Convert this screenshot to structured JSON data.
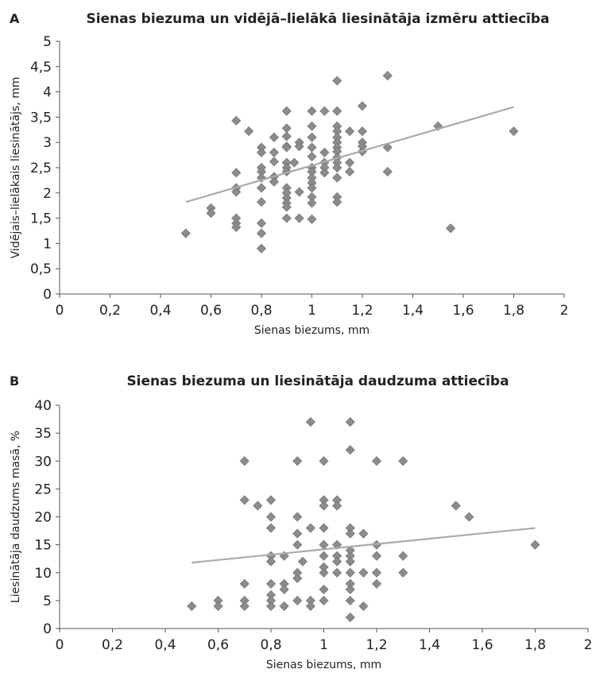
{
  "chart_data": [
    {
      "panel_letter": "A",
      "type": "scatter",
      "title": "Sienas biezuma un vidējā–lielākā liesinātāja izmēru attiecība",
      "xlabel": "Sienas biezums, mm",
      "ylabel": "Vidējais–lielākais liesinātājs, mm",
      "xlim": [
        0,
        2
      ],
      "ylim": [
        0,
        5
      ],
      "x_ticks": [
        "0",
        "0,2",
        "0,4",
        "0,6",
        "0,8",
        "1",
        "1,2",
        "1,4",
        "1,6",
        "1,8",
        "2"
      ],
      "y_ticks": [
        "0",
        "0,5",
        "1",
        "1,5",
        "2",
        "2,5",
        "3",
        "3,5",
        "4",
        "4,5",
        "5"
      ],
      "grid": false,
      "marker_color": "#8c8c8c",
      "trend_color": "#aaaaaa",
      "trendline": {
        "x": [
          0.5,
          1.8
        ],
        "y": [
          1.82,
          3.7
        ]
      },
      "points": [
        [
          0.5,
          1.2
        ],
        [
          0.6,
          1.7
        ],
        [
          0.6,
          1.6
        ],
        [
          0.7,
          3.43
        ],
        [
          0.7,
          2.4
        ],
        [
          0.7,
          2.1
        ],
        [
          0.7,
          2.02
        ],
        [
          0.7,
          1.5
        ],
        [
          0.7,
          1.4
        ],
        [
          0.7,
          1.32
        ],
        [
          0.75,
          3.22
        ],
        [
          0.8,
          2.9
        ],
        [
          0.8,
          2.8
        ],
        [
          0.8,
          2.5
        ],
        [
          0.8,
          2.42
        ],
        [
          0.8,
          2.3
        ],
        [
          0.8,
          2.1
        ],
        [
          0.8,
          1.82
        ],
        [
          0.8,
          1.4
        ],
        [
          0.8,
          1.2
        ],
        [
          0.8,
          0.9
        ],
        [
          0.85,
          3.1
        ],
        [
          0.85,
          2.8
        ],
        [
          0.85,
          2.62
        ],
        [
          0.85,
          2.32
        ],
        [
          0.85,
          2.22
        ],
        [
          0.9,
          3.62
        ],
        [
          0.9,
          3.28
        ],
        [
          0.9,
          3.12
        ],
        [
          0.9,
          2.92
        ],
        [
          0.9,
          2.9
        ],
        [
          0.9,
          2.6
        ],
        [
          0.9,
          2.5
        ],
        [
          0.9,
          2.42
        ],
        [
          0.9,
          2.1
        ],
        [
          0.9,
          2.0
        ],
        [
          0.9,
          1.9
        ],
        [
          0.9,
          1.8
        ],
        [
          0.9,
          1.72
        ],
        [
          0.9,
          1.5
        ],
        [
          0.93,
          2.6
        ],
        [
          0.95,
          3.0
        ],
        [
          0.95,
          2.92
        ],
        [
          0.95,
          2.02
        ],
        [
          0.95,
          1.5
        ],
        [
          1.0,
          3.62
        ],
        [
          1.0,
          3.32
        ],
        [
          1.0,
          3.1
        ],
        [
          1.0,
          2.9
        ],
        [
          1.0,
          2.72
        ],
        [
          1.0,
          2.5
        ],
        [
          1.0,
          2.42
        ],
        [
          1.0,
          2.3
        ],
        [
          1.0,
          2.2
        ],
        [
          1.0,
          2.1
        ],
        [
          1.0,
          1.92
        ],
        [
          1.0,
          1.8
        ],
        [
          1.0,
          1.48
        ],
        [
          1.05,
          3.62
        ],
        [
          1.05,
          2.8
        ],
        [
          1.05,
          2.6
        ],
        [
          1.05,
          2.5
        ],
        [
          1.05,
          2.4
        ],
        [
          1.1,
          4.22
        ],
        [
          1.1,
          3.62
        ],
        [
          1.1,
          3.32
        ],
        [
          1.1,
          3.22
        ],
        [
          1.1,
          3.1
        ],
        [
          1.1,
          3.0
        ],
        [
          1.1,
          2.9
        ],
        [
          1.1,
          2.82
        ],
        [
          1.1,
          2.7
        ],
        [
          1.1,
          2.6
        ],
        [
          1.1,
          2.5
        ],
        [
          1.1,
          2.3
        ],
        [
          1.1,
          1.92
        ],
        [
          1.1,
          1.82
        ],
        [
          1.15,
          3.22
        ],
        [
          1.15,
          2.6
        ],
        [
          1.15,
          2.42
        ],
        [
          1.2,
          3.72
        ],
        [
          1.2,
          3.22
        ],
        [
          1.2,
          3.0
        ],
        [
          1.2,
          2.92
        ],
        [
          1.2,
          2.82
        ],
        [
          1.3,
          4.32
        ],
        [
          1.3,
          2.9
        ],
        [
          1.3,
          2.42
        ],
        [
          1.5,
          3.32
        ],
        [
          1.55,
          1.3
        ],
        [
          1.8,
          3.22
        ]
      ]
    },
    {
      "panel_letter": "B",
      "type": "scatter",
      "title": "Sienas biezuma un liesinātāja daudzuma attiecība",
      "xlabel": "Sienas biezums, mm",
      "ylabel": "Liesinātāja daudzums masā, %",
      "xlim": [
        0,
        2
      ],
      "ylim": [
        0,
        40
      ],
      "x_ticks": [
        "0",
        "0,2",
        "0,4",
        "0,6",
        "0,8",
        "1",
        "1,2",
        "1,4",
        "1,6",
        "1,8",
        "2"
      ],
      "y_ticks": [
        "0",
        "5",
        "10",
        "15",
        "20",
        "25",
        "30",
        "35",
        "40"
      ],
      "grid": false,
      "marker_color": "#8c8c8c",
      "trend_color": "#aaaaaa",
      "trendline": {
        "x": [
          0.5,
          1.8
        ],
        "y": [
          11.8,
          18.0
        ]
      },
      "points": [
        [
          0.5,
          4
        ],
        [
          0.6,
          5
        ],
        [
          0.6,
          4
        ],
        [
          0.7,
          30
        ],
        [
          0.7,
          23
        ],
        [
          0.7,
          8
        ],
        [
          0.7,
          5
        ],
        [
          0.7,
          4
        ],
        [
          0.75,
          22
        ],
        [
          0.8,
          23
        ],
        [
          0.8,
          20
        ],
        [
          0.8,
          18
        ],
        [
          0.8,
          13
        ],
        [
          0.8,
          12
        ],
        [
          0.8,
          8
        ],
        [
          0.8,
          6
        ],
        [
          0.8,
          5
        ],
        [
          0.8,
          4
        ],
        [
          0.85,
          13
        ],
        [
          0.85,
          8
        ],
        [
          0.85,
          7
        ],
        [
          0.85,
          4
        ],
        [
          0.9,
          30
        ],
        [
          0.9,
          20
        ],
        [
          0.9,
          17
        ],
        [
          0.9,
          15
        ],
        [
          0.9,
          10
        ],
        [
          0.9,
          9
        ],
        [
          0.9,
          5
        ],
        [
          0.92,
          12
        ],
        [
          0.95,
          37
        ],
        [
          0.95,
          18
        ],
        [
          0.95,
          5
        ],
        [
          0.95,
          4
        ],
        [
          1.0,
          30
        ],
        [
          1.0,
          23
        ],
        [
          1.0,
          22
        ],
        [
          1.0,
          18
        ],
        [
          1.0,
          15
        ],
        [
          1.0,
          13
        ],
        [
          1.0,
          11
        ],
        [
          1.0,
          10
        ],
        [
          1.0,
          7
        ],
        [
          1.0,
          5
        ],
        [
          1.05,
          23
        ],
        [
          1.05,
          22
        ],
        [
          1.05,
          15
        ],
        [
          1.05,
          13
        ],
        [
          1.05,
          12
        ],
        [
          1.05,
          10
        ],
        [
          1.1,
          37
        ],
        [
          1.1,
          32
        ],
        [
          1.1,
          18
        ],
        [
          1.1,
          17
        ],
        [
          1.1,
          14
        ],
        [
          1.1,
          13
        ],
        [
          1.1,
          12
        ],
        [
          1.1,
          10
        ],
        [
          1.1,
          8
        ],
        [
          1.1,
          7
        ],
        [
          1.1,
          5
        ],
        [
          1.1,
          2
        ],
        [
          1.15,
          17
        ],
        [
          1.15,
          10
        ],
        [
          1.15,
          4
        ],
        [
          1.2,
          30
        ],
        [
          1.2,
          15
        ],
        [
          1.2,
          13
        ],
        [
          1.2,
          10
        ],
        [
          1.2,
          8
        ],
        [
          1.3,
          30
        ],
        [
          1.3,
          13
        ],
        [
          1.3,
          10
        ],
        [
          1.5,
          22
        ],
        [
          1.55,
          20
        ],
        [
          1.8,
          15
        ]
      ]
    }
  ]
}
